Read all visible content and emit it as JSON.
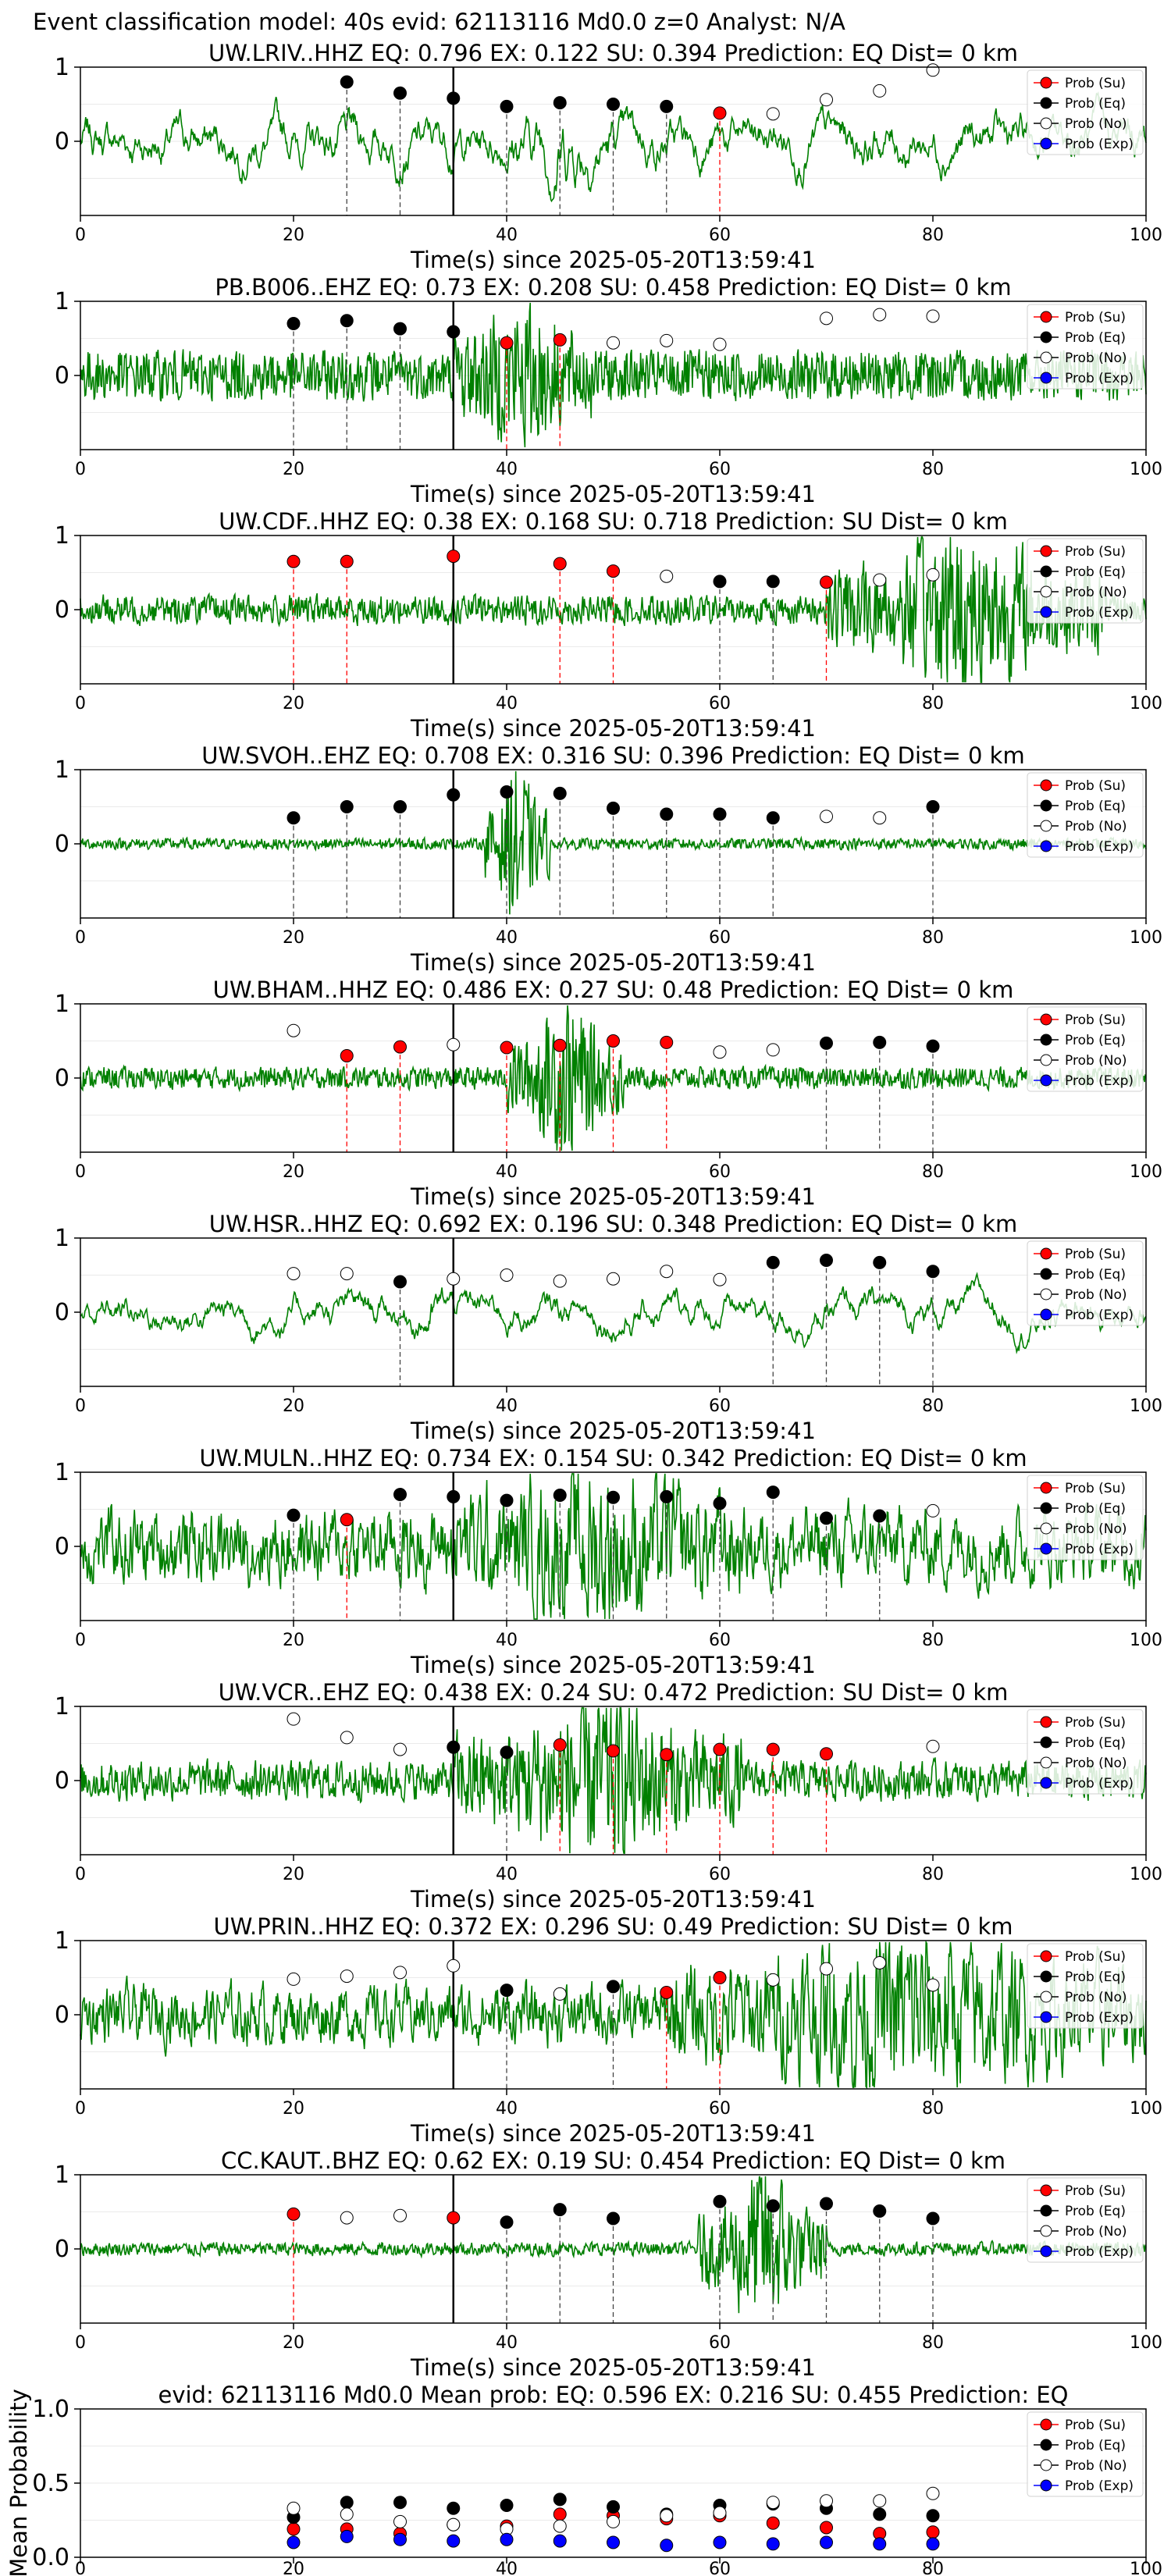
{
  "figure_title": "Event classification model: 40s evid: 62113116 Md0.0 z=0 Analyst: N/A",
  "time_label": "Time(s) since 2025-05-20T13:59:41",
  "legend": [
    "Prob (Su)",
    "Prob (Eq)",
    "Prob (No)",
    "Prob (Exp)"
  ],
  "colors": {
    "su": "#ff0000",
    "eq": "#000000",
    "no": "#ffffff",
    "exp": "#0000ff",
    "trace": "#008000"
  },
  "chart_data": [
    {
      "type": "line",
      "station": "UW.LRIV..HHZ",
      "title": "UW.LRIV..HHZ    EQ: 0.796  EX: 0.122  SU: 0.394   Prediction: EQ    Dist= 0 km",
      "xlim": [
        0,
        100
      ],
      "ylim": [
        -1,
        1
      ],
      "xticks": [
        0,
        20,
        40,
        60,
        80,
        100
      ],
      "yticks": [
        0,
        1
      ],
      "noise": 0.55,
      "smooth": 0.92,
      "quake": [
        40,
        50
      ],
      "pick": 35,
      "points": [
        [
          25,
          0.8,
          "eq"
        ],
        [
          30,
          0.65,
          "eq"
        ],
        [
          35,
          0.58,
          "eq"
        ],
        [
          40,
          0.47,
          "eq"
        ],
        [
          45,
          0.52,
          "eq"
        ],
        [
          50,
          0.5,
          "eq"
        ],
        [
          55,
          0.47,
          "eq"
        ],
        [
          60,
          0.38,
          "su"
        ],
        [
          65,
          0.37,
          "no"
        ],
        [
          70,
          0.56,
          "no"
        ],
        [
          75,
          0.68,
          "no"
        ],
        [
          80,
          0.96,
          "no"
        ]
      ]
    },
    {
      "type": "line",
      "station": "PB.B006..EHZ",
      "title": "PB.B006..EHZ   EQ: 0.73  EX: 0.208  SU: 0.458   Prediction: EQ    Dist= 0 km",
      "xlim": [
        0,
        100
      ],
      "ylim": [
        -1,
        1
      ],
      "xticks": [
        0,
        20,
        40,
        60,
        80,
        100
      ],
      "yticks": [
        0,
        1
      ],
      "noise": 0.3,
      "smooth": 0.1,
      "quake": [
        35,
        48
      ],
      "pick": 35,
      "points": [
        [
          20,
          0.7,
          "eq"
        ],
        [
          25,
          0.74,
          "eq"
        ],
        [
          30,
          0.63,
          "eq"
        ],
        [
          35,
          0.59,
          "eq"
        ],
        [
          40,
          0.44,
          "su"
        ],
        [
          45,
          0.48,
          "su"
        ],
        [
          50,
          0.44,
          "no"
        ],
        [
          55,
          0.47,
          "no"
        ],
        [
          60,
          0.42,
          "no"
        ],
        [
          70,
          0.77,
          "no"
        ],
        [
          75,
          0.82,
          "no"
        ],
        [
          80,
          0.8,
          "no"
        ]
      ]
    },
    {
      "type": "line",
      "station": "UW.CDF..HHZ",
      "title": "UW.CDF..HHZ   EQ: 0.38  EX: 0.168  SU: 0.718   Prediction: SU    Dist= 0 km",
      "xlim": [
        0,
        100
      ],
      "ylim": [
        -1,
        1
      ],
      "xticks": [
        0,
        20,
        40,
        60,
        80,
        100
      ],
      "yticks": [
        0,
        1
      ],
      "noise": 0.15,
      "smooth": 0.3,
      "quake": [
        70,
        96
      ],
      "pick": 35,
      "points": [
        [
          20,
          0.65,
          "su"
        ],
        [
          25,
          0.65,
          "su"
        ],
        [
          35,
          0.72,
          "su"
        ],
        [
          45,
          0.62,
          "su"
        ],
        [
          50,
          0.52,
          "su"
        ],
        [
          55,
          0.45,
          "no"
        ],
        [
          60,
          0.38,
          "eq"
        ],
        [
          65,
          0.38,
          "eq"
        ],
        [
          70,
          0.37,
          "su"
        ],
        [
          75,
          0.4,
          "no"
        ],
        [
          80,
          0.47,
          "no"
        ]
      ]
    },
    {
      "type": "line",
      "station": "UW.SVOH..EHZ",
      "title": "UW.SVOH..EHZ    EQ: 0.708  EX: 0.316  SU: 0.396    Prediction: EQ    Dist= 0 km",
      "xlim": [
        0,
        100
      ],
      "ylim": [
        -1,
        1
      ],
      "xticks": [
        0,
        20,
        40,
        60,
        80,
        100
      ],
      "yticks": [
        0,
        1
      ],
      "noise": 0.06,
      "smooth": 0.2,
      "quake": [
        38,
        44
      ],
      "pick": 35,
      "points": [
        [
          20,
          0.35,
          "eq"
        ],
        [
          25,
          0.5,
          "eq"
        ],
        [
          30,
          0.5,
          "eq"
        ],
        [
          35,
          0.66,
          "eq"
        ],
        [
          40,
          0.7,
          "eq"
        ],
        [
          45,
          0.68,
          "eq"
        ],
        [
          50,
          0.48,
          "eq"
        ],
        [
          55,
          0.4,
          "eq"
        ],
        [
          60,
          0.4,
          "eq"
        ],
        [
          65,
          0.35,
          "eq"
        ],
        [
          70,
          0.37,
          "no"
        ],
        [
          75,
          0.35,
          "no"
        ],
        [
          80,
          0.5,
          "eq"
        ]
      ]
    },
    {
      "type": "line",
      "station": "UW.BHAM..HHZ",
      "title": "UW.BHAM..HHZ    EQ: 0.486  EX: 0.27  SU: 0.48    Prediction: EQ    Dist= 0 km",
      "xlim": [
        0,
        100
      ],
      "ylim": [
        -1,
        1
      ],
      "xticks": [
        0,
        20,
        40,
        60,
        80,
        100
      ],
      "yticks": [
        0,
        1
      ],
      "noise": 0.12,
      "smooth": 0.2,
      "quake": [
        40,
        51
      ],
      "pick": 35,
      "points": [
        [
          20,
          0.64,
          "no"
        ],
        [
          25,
          0.3,
          "su"
        ],
        [
          30,
          0.42,
          "su"
        ],
        [
          35,
          0.45,
          "no"
        ],
        [
          40,
          0.41,
          "su"
        ],
        [
          45,
          0.44,
          "su"
        ],
        [
          50,
          0.5,
          "su"
        ],
        [
          55,
          0.48,
          "su"
        ],
        [
          60,
          0.35,
          "no"
        ],
        [
          65,
          0.38,
          "no"
        ],
        [
          70,
          0.47,
          "eq"
        ],
        [
          75,
          0.48,
          "eq"
        ],
        [
          80,
          0.43,
          "eq"
        ]
      ]
    },
    {
      "type": "line",
      "station": "UW.HSR..HHZ",
      "title": "UW.HSR..HHZ   EQ: 0.692  EX: 0.196  SU: 0.348   Prediction: EQ    Dist= 0 km",
      "xlim": [
        0,
        100
      ],
      "ylim": [
        -1,
        1
      ],
      "xticks": [
        0,
        20,
        40,
        60,
        80,
        100
      ],
      "yticks": [
        0,
        1
      ],
      "noise": 0.6,
      "smooth": 0.95,
      "quake": [
        32,
        34
      ],
      "pick": 35,
      "points": [
        [
          20,
          0.52,
          "no"
        ],
        [
          25,
          0.52,
          "no"
        ],
        [
          30,
          0.41,
          "eq"
        ],
        [
          35,
          0.45,
          "no"
        ],
        [
          40,
          0.5,
          "no"
        ],
        [
          45,
          0.42,
          "no"
        ],
        [
          50,
          0.45,
          "no"
        ],
        [
          55,
          0.55,
          "no"
        ],
        [
          60,
          0.44,
          "no"
        ],
        [
          65,
          0.67,
          "eq"
        ],
        [
          70,
          0.7,
          "eq"
        ],
        [
          75,
          0.67,
          "eq"
        ],
        [
          80,
          0.55,
          "eq"
        ]
      ]
    },
    {
      "type": "line",
      "station": "UW.MULN..HHZ",
      "title": "UW.MULN..HHZ    EQ: 0.734  EX: 0.154  SU: 0.342   Prediction: EQ    Dist= 0 km",
      "xlim": [
        0,
        100
      ],
      "ylim": [
        -1,
        1
      ],
      "xticks": [
        0,
        20,
        40,
        60,
        80,
        100
      ],
      "yticks": [
        0,
        1
      ],
      "noise": 0.4,
      "smooth": 0.6,
      "quake": [
        35,
        62
      ],
      "pick": 35,
      "points": [
        [
          20,
          0.42,
          "eq"
        ],
        [
          25,
          0.36,
          "su"
        ],
        [
          30,
          0.7,
          "eq"
        ],
        [
          35,
          0.67,
          "eq"
        ],
        [
          40,
          0.62,
          "eq"
        ],
        [
          45,
          0.69,
          "eq"
        ],
        [
          50,
          0.66,
          "eq"
        ],
        [
          55,
          0.67,
          "eq"
        ],
        [
          60,
          0.58,
          "eq"
        ],
        [
          65,
          0.73,
          "eq"
        ],
        [
          70,
          0.38,
          "eq"
        ],
        [
          75,
          0.41,
          "eq"
        ],
        [
          80,
          0.48,
          "no"
        ]
      ]
    },
    {
      "type": "line",
      "station": "UW.VCR..EHZ",
      "title": "UW.VCR..EHZ   EQ: 0.438  EX: 0.24  SU: 0.472   Prediction: SU    Dist= 0 km",
      "xlim": [
        0,
        100
      ],
      "ylim": [
        -1,
        1
      ],
      "xticks": [
        0,
        20,
        40,
        60,
        80,
        100
      ],
      "yticks": [
        0,
        1
      ],
      "noise": 0.2,
      "smooth": 0.3,
      "quake": [
        35,
        62
      ],
      "pick": 35,
      "points": [
        [
          20,
          0.83,
          "no"
        ],
        [
          25,
          0.58,
          "no"
        ],
        [
          30,
          0.42,
          "no"
        ],
        [
          35,
          0.45,
          "eq"
        ],
        [
          40,
          0.38,
          "eq"
        ],
        [
          45,
          0.48,
          "su"
        ],
        [
          50,
          0.4,
          "su"
        ],
        [
          55,
          0.35,
          "su"
        ],
        [
          60,
          0.42,
          "su"
        ],
        [
          65,
          0.42,
          "su"
        ],
        [
          70,
          0.36,
          "su"
        ],
        [
          80,
          0.46,
          "no"
        ]
      ]
    },
    {
      "type": "line",
      "station": "UW.PRIN..HHZ",
      "title": "UW.PRIN..HHZ   EQ: 0.372  EX: 0.296  SU: 0.49   Prediction: SU    Dist= 0 km",
      "xlim": [
        0,
        100
      ],
      "ylim": [
        -1,
        1
      ],
      "xticks": [
        0,
        20,
        40,
        60,
        80,
        100
      ],
      "yticks": [
        0,
        1
      ],
      "noise": 0.3,
      "smooth": 0.55,
      "quake": [
        55,
        100
      ],
      "pick": 35,
      "points": [
        [
          20,
          0.48,
          "no"
        ],
        [
          25,
          0.52,
          "no"
        ],
        [
          30,
          0.57,
          "no"
        ],
        [
          35,
          0.66,
          "no"
        ],
        [
          40,
          0.33,
          "eq"
        ],
        [
          45,
          0.28,
          "no"
        ],
        [
          50,
          0.38,
          "eq"
        ],
        [
          55,
          0.3,
          "su"
        ],
        [
          60,
          0.5,
          "su"
        ],
        [
          65,
          0.47,
          "no"
        ],
        [
          70,
          0.62,
          "no"
        ],
        [
          75,
          0.7,
          "no"
        ],
        [
          80,
          0.4,
          "no"
        ]
      ]
    },
    {
      "type": "line",
      "station": "CC.KAUT..BHZ",
      "title": "CC.KAUT..BHZ    EQ: 0.62  EX: 0.19  SU: 0.454   Prediction: EQ    Dist= 0 km",
      "xlim": [
        0,
        100
      ],
      "ylim": [
        -1,
        1
      ],
      "xticks": [
        0,
        20,
        40,
        60,
        80,
        100
      ],
      "yticks": [
        0,
        1
      ],
      "noise": 0.07,
      "smooth": 0.3,
      "quake": [
        58,
        70
      ],
      "pick": 35,
      "points": [
        [
          20,
          0.47,
          "su"
        ],
        [
          25,
          0.42,
          "no"
        ],
        [
          30,
          0.45,
          "no"
        ],
        [
          35,
          0.42,
          "su"
        ],
        [
          40,
          0.36,
          "eq"
        ],
        [
          45,
          0.53,
          "eq"
        ],
        [
          50,
          0.41,
          "eq"
        ],
        [
          60,
          0.64,
          "eq"
        ],
        [
          65,
          0.58,
          "eq"
        ],
        [
          70,
          0.61,
          "eq"
        ],
        [
          75,
          0.51,
          "eq"
        ],
        [
          80,
          0.41,
          "eq"
        ]
      ]
    }
  ],
  "summary": {
    "type": "scatter",
    "title": "evid: 62113116  Md0.0   Mean prob:    EQ: 0.596  EX: 0.216  SU: 0.455   Prediction: EQ",
    "ylabel": "Mean Probability",
    "xlim": [
      0,
      100
    ],
    "ylim": [
      0,
      1
    ],
    "xticks": [
      0,
      20,
      40,
      60,
      80,
      100
    ],
    "yticks": [
      0.0,
      0.5,
      1.0
    ],
    "ytick_labels": [
      "0.0",
      "0.5",
      "1.0"
    ],
    "x": [
      20,
      25,
      30,
      35,
      40,
      45,
      50,
      55,
      60,
      65,
      70,
      75,
      80
    ],
    "series": [
      {
        "name": "Prob (Su)",
        "key": "su",
        "values": [
          0.19,
          0.19,
          0.16,
          0.22,
          0.21,
          0.29,
          0.28,
          0.26,
          0.28,
          0.23,
          0.2,
          0.16,
          0.17
        ]
      },
      {
        "name": "Prob (Eq)",
        "key": "eq",
        "values": [
          0.27,
          0.37,
          0.37,
          0.33,
          0.35,
          0.39,
          0.34,
          0.29,
          0.35,
          0.36,
          0.33,
          0.29,
          0.28
        ]
      },
      {
        "name": "Prob (No)",
        "key": "no",
        "values": [
          0.33,
          0.29,
          0.24,
          0.22,
          0.19,
          0.21,
          0.24,
          0.28,
          0.3,
          0.37,
          0.38,
          0.38,
          0.43
        ]
      },
      {
        "name": "Prob (Exp)",
        "key": "exp",
        "values": [
          0.1,
          0.14,
          0.12,
          0.11,
          0.12,
          0.11,
          0.1,
          0.08,
          0.1,
          0.09,
          0.1,
          0.09,
          0.09
        ]
      }
    ]
  }
}
